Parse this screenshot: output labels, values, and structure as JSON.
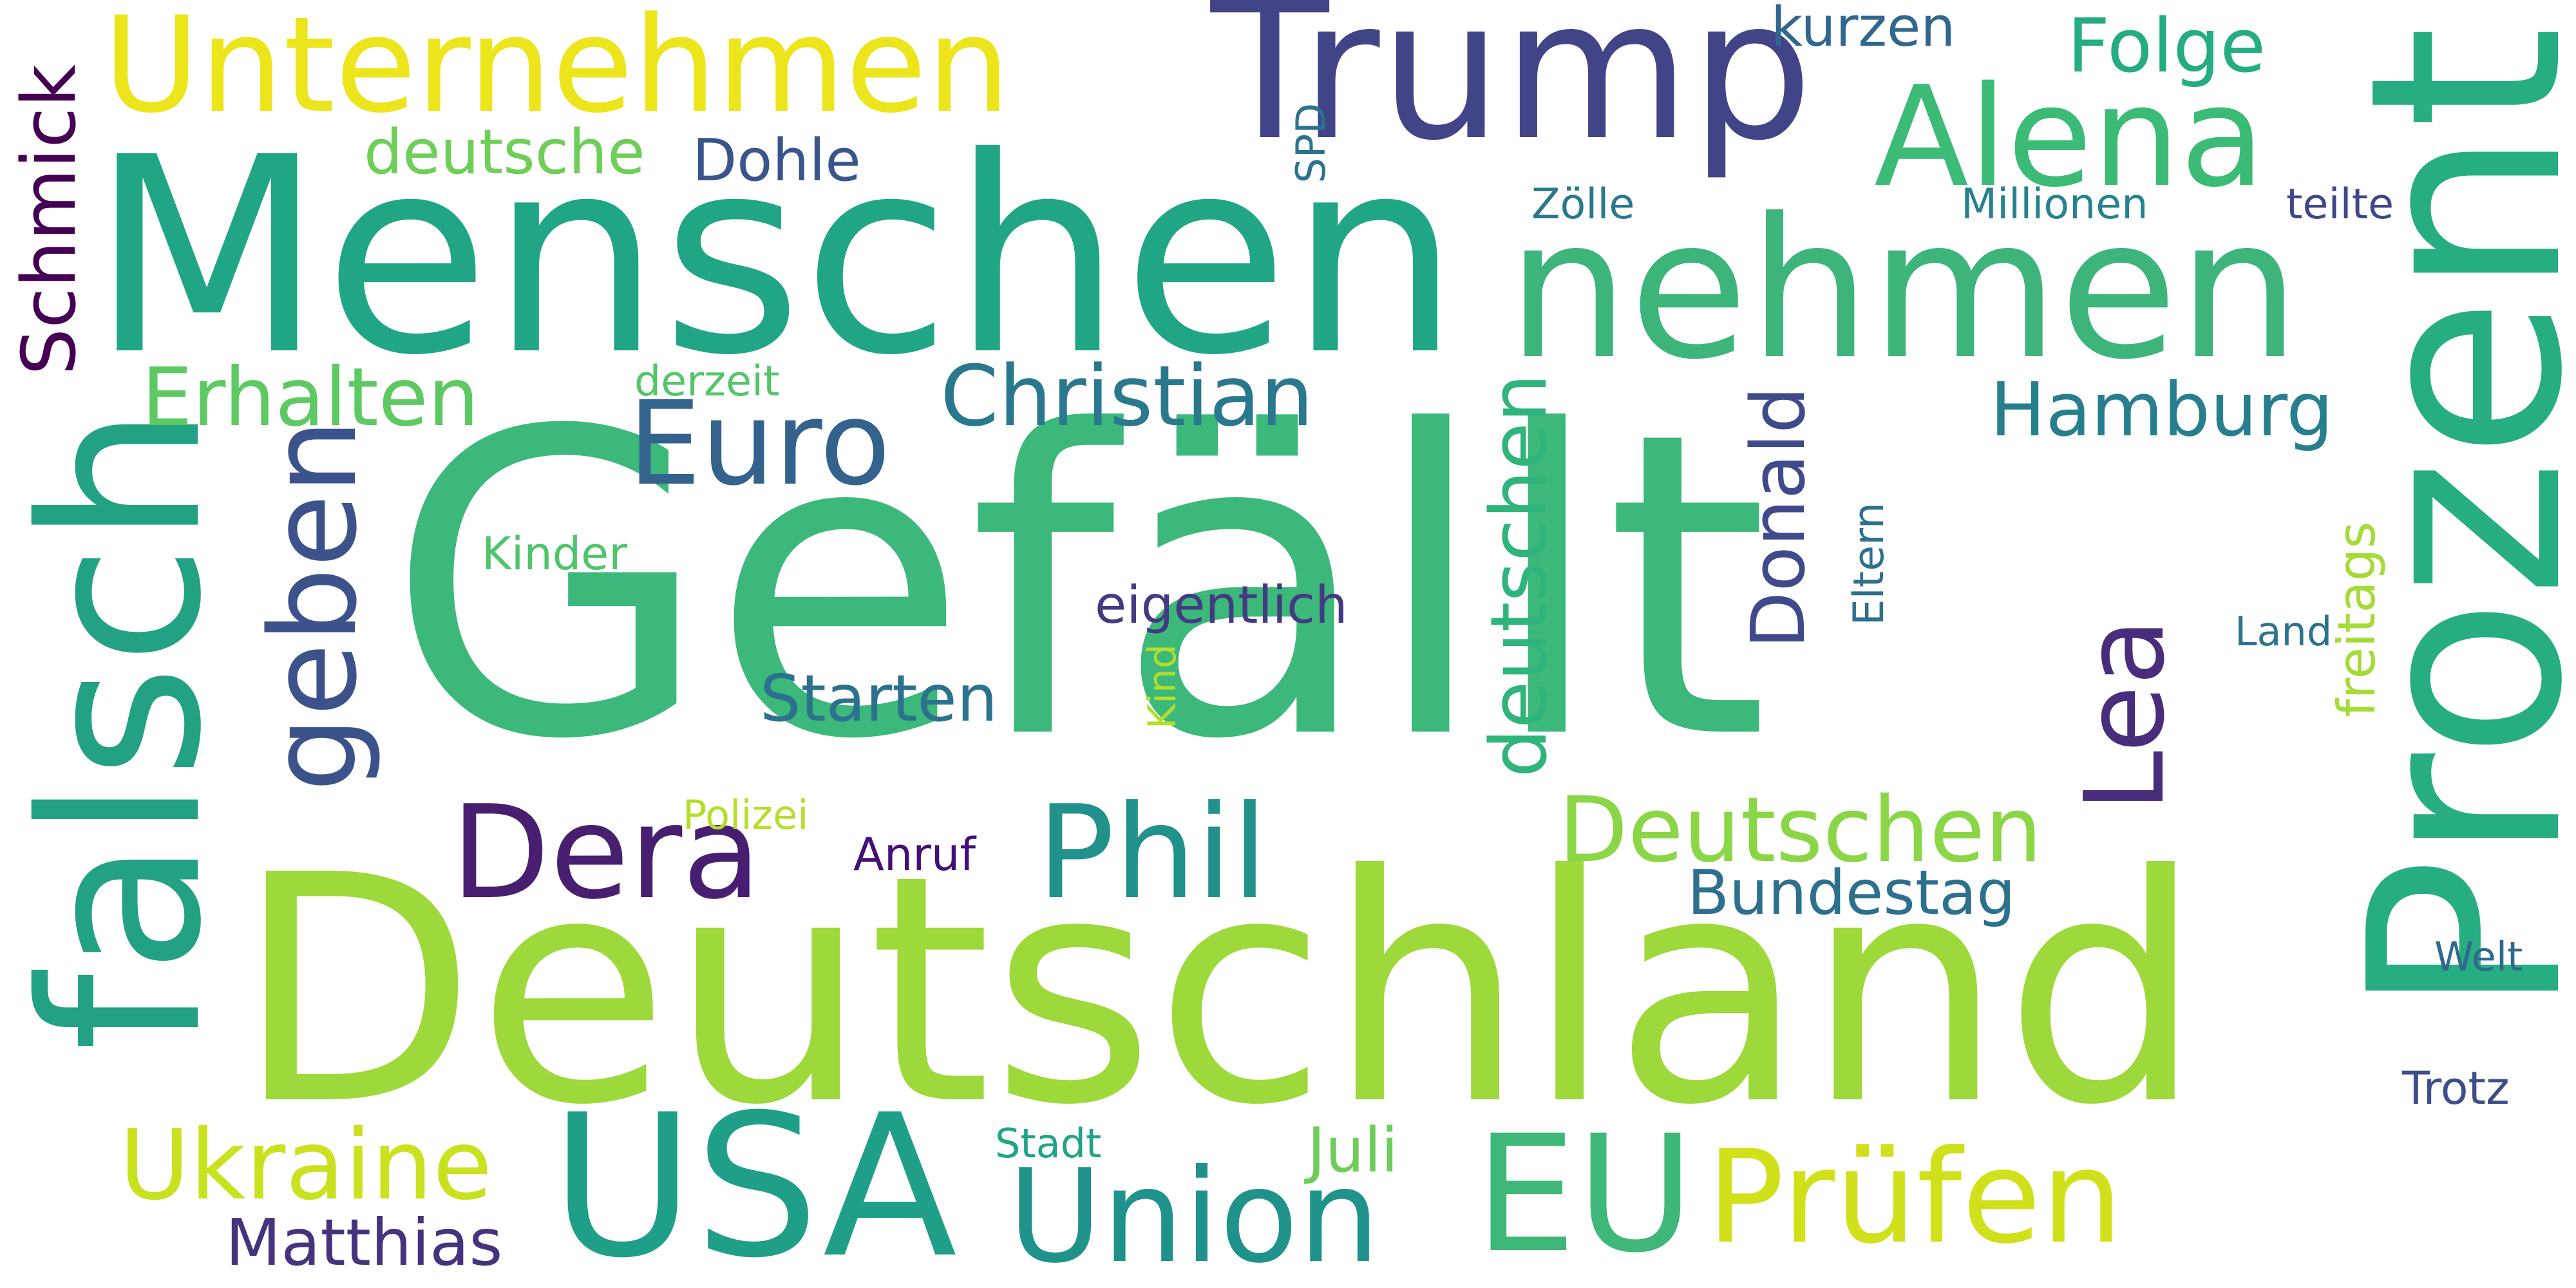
{
  "words": [
    {
      "text": "Gefällt",
      "color": "#3bb87a",
      "rotated": false
    },
    {
      "text": "Deutschland",
      "color": "#9dd93a",
      "rotated": false
    },
    {
      "text": "Menschen",
      "color": "#21a685",
      "rotated": false
    },
    {
      "text": "Prozent",
      "color": "#26ad81",
      "rotated": true
    },
    {
      "text": "falsch",
      "color": "#23a183",
      "rotated": true
    },
    {
      "text": "nehmen",
      "color": "#3db57a",
      "rotated": false
    },
    {
      "text": "USA",
      "color": "#1f9f88",
      "rotated": false
    },
    {
      "text": "Trump",
      "color": "#414487",
      "rotated": false
    },
    {
      "text": "Unternehmen",
      "color": "#ece51b",
      "rotated": false
    },
    {
      "text": "Alena",
      "color": "#3bbb75",
      "rotated": false
    },
    {
      "text": "EU",
      "color": "#3eb778",
      "rotated": false
    },
    {
      "text": "Union",
      "color": "#20928c",
      "rotated": false
    },
    {
      "text": "Prüfen",
      "color": "#d0e11c",
      "rotated": false
    },
    {
      "text": "geben",
      "color": "#3b528b",
      "rotated": true
    },
    {
      "text": "Dera",
      "color": "#481f70",
      "rotated": false
    },
    {
      "text": "Phil",
      "color": "#21918c",
      "rotated": false
    },
    {
      "text": "Euro",
      "color": "#33638d",
      "rotated": false
    },
    {
      "text": "Lea",
      "color": "#472d7b",
      "rotated": true
    },
    {
      "text": "deutschen",
      "color": "#2fb47c",
      "rotated": true
    },
    {
      "text": "Ukraine",
      "color": "#cae11f",
      "rotated": false
    },
    {
      "text": "Deutschen",
      "color": "#8bd646",
      "rotated": false
    },
    {
      "text": "Christian",
      "color": "#2a788e",
      "rotated": false
    },
    {
      "text": "Erhalten",
      "color": "#5ec962",
      "rotated": false
    },
    {
      "text": "Hamburg",
      "color": "#277f8e",
      "rotated": false
    },
    {
      "text": "Schmick",
      "color": "#440154",
      "rotated": true
    },
    {
      "text": "Donald",
      "color": "#3e4a89",
      "rotated": true
    },
    {
      "text": "Folge",
      "color": "#25ac82",
      "rotated": false
    },
    {
      "text": "Matthias",
      "color": "#46337e",
      "rotated": false
    },
    {
      "text": "Starten",
      "color": "#2c728e",
      "rotated": false
    },
    {
      "text": "Bundestag",
      "color": "#2d708e",
      "rotated": false
    },
    {
      "text": "Juli",
      "color": "#6ccd5a",
      "rotated": false
    },
    {
      "text": "deutsche",
      "color": "#6ece58",
      "rotated": false
    },
    {
      "text": "Dohle",
      "color": "#3a548c",
      "rotated": false
    },
    {
      "text": "kurzen",
      "color": "#31668e",
      "rotated": false
    },
    {
      "text": "eigentlich",
      "color": "#443a83",
      "rotated": false
    },
    {
      "text": "freitags",
      "color": "#a5db36",
      "rotated": true
    },
    {
      "text": "Eltern",
      "color": "#2e6f8e",
      "rotated": true
    },
    {
      "text": "Anruf",
      "color": "#440f76",
      "rotated": false
    },
    {
      "text": "Kinder",
      "color": "#50c46a",
      "rotated": false
    },
    {
      "text": "Millionen",
      "color": "#26828e",
      "rotated": false
    },
    {
      "text": "teilte",
      "color": "#3f4788",
      "rotated": false
    },
    {
      "text": "Zölle",
      "color": "#2a778e",
      "rotated": false
    },
    {
      "text": "derzeit",
      "color": "#54c568",
      "rotated": false
    },
    {
      "text": "Polizei",
      "color": "#b5de2b",
      "rotated": false
    },
    {
      "text": "Stadt",
      "color": "#20a386",
      "rotated": false
    },
    {
      "text": "Welt",
      "color": "#31688e",
      "rotated": false
    },
    {
      "text": "Trotz",
      "color": "#3d4e8a",
      "rotated": false
    },
    {
      "text": "Land",
      "color": "#2c738e",
      "rotated": false
    },
    {
      "text": "Kind",
      "color": "#b2dd2d",
      "rotated": true
    },
    {
      "text": "SPD",
      "color": "#2c728e",
      "rotated": true
    }
  ]
}
